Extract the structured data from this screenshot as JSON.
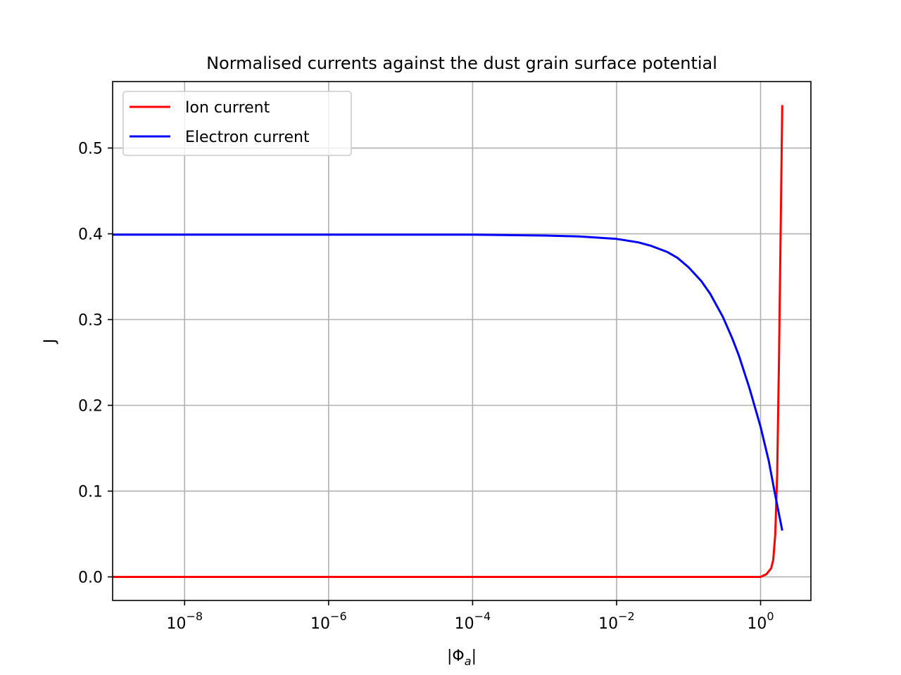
{
  "chart_data": {
    "type": "line",
    "title": "Normalised currents against the dust grain surface potential",
    "xlabel": "|Φ_a|",
    "ylabel": "J",
    "xscale": "log",
    "xlim": [
      1e-09,
      5
    ],
    "ylim": [
      -0.0275,
      0.5775
    ],
    "grid": true,
    "legend_position": "top-left",
    "x_ticks": [
      {
        "value": 1e-08,
        "base": "10",
        "exp": "−8"
      },
      {
        "value": 1e-06,
        "base": "10",
        "exp": "−6"
      },
      {
        "value": 0.0001,
        "base": "10",
        "exp": "−4"
      },
      {
        "value": 0.01,
        "base": "10",
        "exp": "−2"
      },
      {
        "value": 1,
        "base": "10",
        "exp": "0"
      }
    ],
    "y_ticks": [
      {
        "value": 0.0,
        "label": "0.0"
      },
      {
        "value": 0.1,
        "label": "0.1"
      },
      {
        "value": 0.2,
        "label": "0.2"
      },
      {
        "value": 0.3,
        "label": "0.3"
      },
      {
        "value": 0.4,
        "label": "0.4"
      },
      {
        "value": 0.5,
        "label": "0.5"
      }
    ],
    "series": [
      {
        "name": "Ion current",
        "color": "#ff0000",
        "x": [
          1e-09,
          1e-06,
          0.001,
          0.5,
          1.0,
          1.2,
          1.4,
          1.5,
          1.6,
          1.7,
          1.8,
          1.9,
          2.0
        ],
        "y": [
          0.0,
          0.0,
          0.0,
          0.0,
          0.0,
          0.003,
          0.01,
          0.02,
          0.05,
          0.12,
          0.25,
          0.4,
          0.55
        ]
      },
      {
        "name": "Electron current",
        "color": "#0000ff",
        "x": [
          1e-09,
          1e-06,
          0.0001,
          0.001,
          0.003,
          0.01,
          0.02,
          0.03,
          0.05,
          0.07,
          0.1,
          0.15,
          0.2,
          0.3,
          0.4,
          0.5,
          0.7,
          1.0,
          1.3,
          1.6,
          2.0
        ],
        "y": [
          0.399,
          0.399,
          0.399,
          0.398,
          0.397,
          0.394,
          0.39,
          0.386,
          0.379,
          0.372,
          0.361,
          0.345,
          0.33,
          0.303,
          0.279,
          0.258,
          0.22,
          0.175,
          0.135,
          0.095,
          0.054
        ]
      }
    ]
  }
}
